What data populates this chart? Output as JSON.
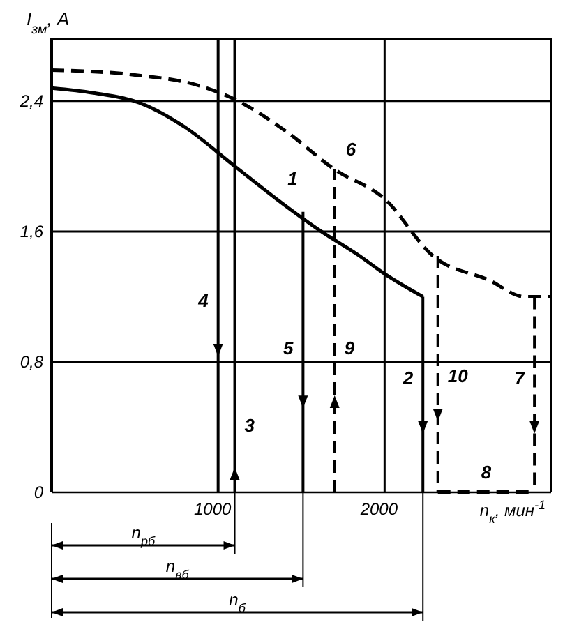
{
  "chart_data": {
    "type": "line",
    "xlabel": "n$_{к}$, мин$^{-1}$",
    "ylabel": "I$_{зм}$, А",
    "xlim": [
      0,
      3000
    ],
    "ylim": [
      0,
      2.78
    ],
    "xticks": [
      1000,
      2000
    ],
    "yticks": [
      {
        "value": 0,
        "label": "0"
      },
      {
        "value": 0.8,
        "label": "0,8"
      },
      {
        "value": 1.6,
        "label": "1,6"
      },
      {
        "value": 2.4,
        "label": "2,4"
      }
    ],
    "grid": true,
    "legend": false,
    "marker": "none",
    "line_style": "solid",
    "series": [
      {
        "name": "1",
        "color": "#000000",
        "x": [
          0,
          250,
          525,
          800,
          1100,
          1350,
          1620,
          1850,
          2000,
          2230
        ],
        "values": [
          2.48,
          2.45,
          2.39,
          2.24,
          2.0,
          1.8,
          1.6,
          1.45,
          1.34,
          1.2
        ]
      },
      {
        "name": "6",
        "color": "#000000",
        "line_style": "dashed",
        "x": [
          0,
          500,
          900,
          1100,
          1400,
          1700,
          2000,
          2290,
          2630,
          2840,
          3000
        ],
        "values": [
          2.59,
          2.56,
          2.49,
          2.41,
          2.22,
          1.98,
          1.8,
          1.45,
          1.3,
          1.2,
          1.2
        ]
      },
      {
        "name": "4",
        "color": "#000000",
        "x": [
          1000,
          1000
        ],
        "values": [
          2.78,
          0
        ]
      },
      {
        "name": "3",
        "color": "#000000",
        "x": [
          1100,
          1100
        ],
        "values": [
          0,
          2.78
        ]
      },
      {
        "name": "5",
        "color": "#000000",
        "x": [
          1510,
          1510
        ],
        "values": [
          1.72,
          0
        ]
      },
      {
        "name": "9",
        "color": "#000000",
        "line_style": "dashed",
        "x": [
          1700,
          1700
        ],
        "values": [
          0,
          1.98
        ]
      },
      {
        "name": "2",
        "color": "#000000",
        "x": [
          2230,
          2230
        ],
        "values": [
          1.2,
          0
        ]
      },
      {
        "name": "10",
        "color": "#000000",
        "line_style": "dashed",
        "x": [
          2320,
          2320
        ],
        "values": [
          1.45,
          0
        ]
      },
      {
        "name": "7",
        "color": "#000000",
        "line_style": "dashed",
        "x": [
          2900,
          2900
        ],
        "values": [
          1.2,
          0
        ]
      },
      {
        "name": "8",
        "color": "#000000",
        "line_style": "dashed",
        "x": [
          2320,
          2900
        ],
        "values": [
          0,
          0
        ]
      }
    ],
    "annotations": [
      "n$_{рб}$",
      "n$_{вб}$",
      "n$_{б}$"
    ]
  }
}
